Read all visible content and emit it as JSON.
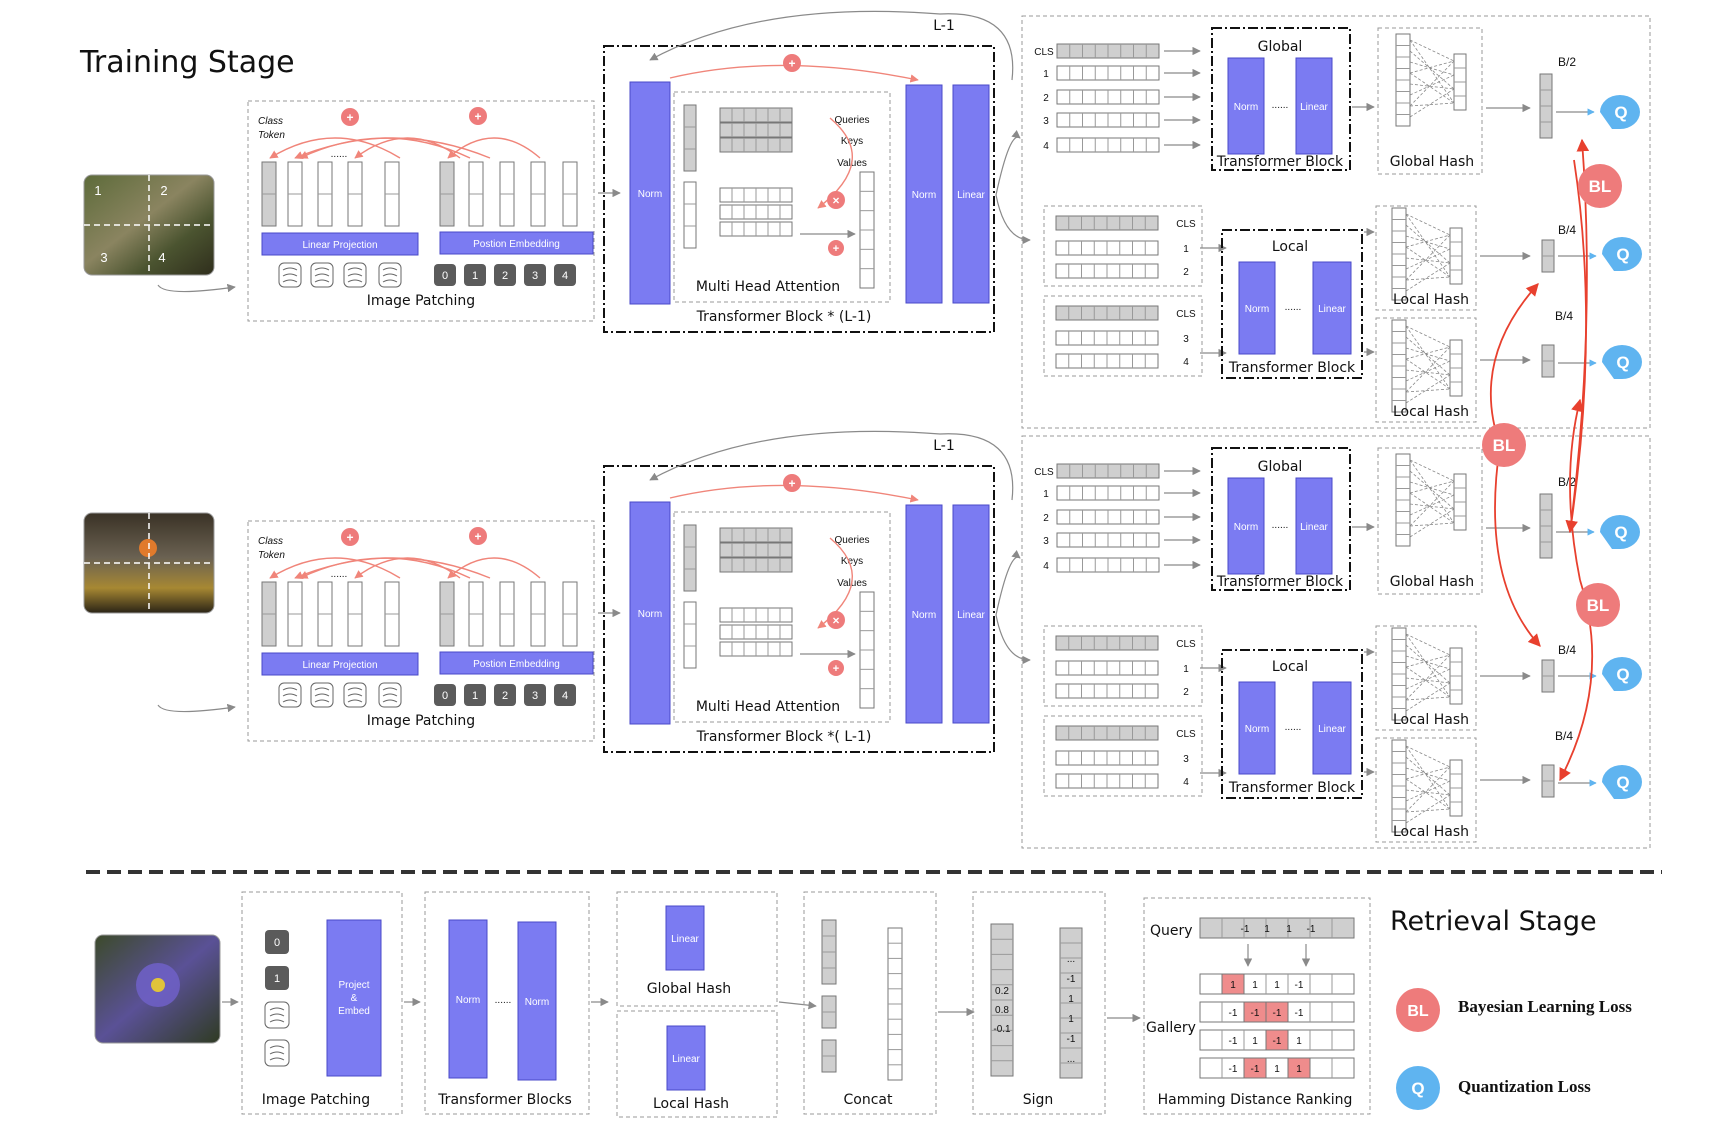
{
  "colors": {
    "accent": "#7b7bf2",
    "bl": "#ee7b7b",
    "q": "#5fb4f0",
    "red_arrow": "#e8402e",
    "token_gray": "#cfcfcf",
    "chip_dark": "#5b5b5b"
  },
  "training": {
    "title": "Training Stage",
    "image_patching": "Image Patching",
    "class_token": [
      "Class",
      "Token"
    ],
    "linear_projection": "Linear Projection",
    "position_embedding": "Postion Embedding",
    "dots": "......",
    "pos_ids": [
      "0",
      "1",
      "2",
      "3",
      "4"
    ],
    "quadrant_ids": [
      "1",
      "2",
      "3",
      "4"
    ],
    "norm": "Norm",
    "linear": "Linear",
    "queries": "Queries",
    "keys": "Keys",
    "values": "Values",
    "mha": "Multi Head Attention",
    "tb_caption_1": "Transformer Block * (L-1)",
    "tb_caption_2": "Transformer Block *( L-1)",
    "l_minus_1": "L-1",
    "cls": "CLS",
    "row_ids": [
      "1",
      "2",
      "3",
      "4"
    ],
    "global": "Global",
    "local": "Local",
    "transformer_block": "Transformer Block",
    "global_hash": "Global Hash",
    "local_hash": "Local Hash",
    "b2": "B/2",
    "b4": "B/4",
    "bl": "BL",
    "q": "Q",
    "plus": "+",
    "times": "×"
  },
  "retrieval": {
    "title": "Retrieval Stage",
    "image_patching": "Image Patching",
    "project_embed": [
      "Project",
      "&",
      "Embed"
    ],
    "patch_ids": [
      "0",
      "1"
    ],
    "transformer_blocks": "Transformer Blocks",
    "norm": "Norm",
    "dots": "......",
    "linear": "Linear",
    "global_hash": "Global Hash",
    "local_hash": "Local Hash",
    "concat": "Concat",
    "sign": "Sign",
    "sign_left": [
      "0.2",
      "0.8",
      "-0.1"
    ],
    "sign_right": [
      "...",
      "-1",
      "1",
      "1",
      "-1",
      "..."
    ],
    "query_label": "Query",
    "gallery_label": "Gallery",
    "query_codes": [
      "-1",
      "1",
      "1",
      "-1"
    ],
    "gallery_codes": [
      [
        "1",
        "1",
        "1",
        "-1"
      ],
      [
        "-1",
        "-1",
        "-1",
        "-1"
      ],
      [
        "-1",
        "1",
        "-1",
        "1"
      ],
      [
        "-1",
        "-1",
        "1",
        "1"
      ]
    ],
    "hamming": "Hamming Distance Ranking"
  },
  "legend": {
    "bl_symbol": "BL",
    "q_symbol": "Q",
    "bl_text": "Bayesian Learning Loss",
    "q_text": "Quantization Loss"
  }
}
